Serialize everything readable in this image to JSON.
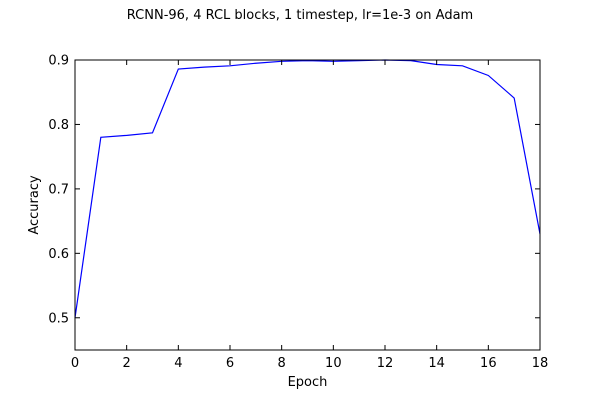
{
  "chart_data": {
    "type": "line",
    "title": "RCNN-96, 4 RCL blocks, 1 timestep, lr=1e-3 on Adam",
    "xlabel": "Epoch",
    "ylabel": "Accuracy",
    "xlim": [
      0,
      18
    ],
    "ylim": [
      0.45,
      0.9
    ],
    "xticks": [
      0,
      2,
      4,
      6,
      8,
      10,
      12,
      14,
      16,
      18
    ],
    "yticks": [
      0.5,
      0.6,
      0.7,
      0.8,
      0.9
    ],
    "xtick_labels": [
      "0",
      "2",
      "4",
      "6",
      "8",
      "10",
      "12",
      "14",
      "16",
      "18"
    ],
    "ytick_labels": [
      "0.5",
      "0.6",
      "0.7",
      "0.8",
      "0.9"
    ],
    "grid": false,
    "legend": "none",
    "series": [
      {
        "color": "#0000ff",
        "x": [
          0,
          1,
          2,
          3,
          4,
          5,
          6,
          7,
          8,
          9,
          10,
          11,
          12,
          13,
          14,
          15,
          16,
          17,
          18
        ],
        "values": [
          0.5,
          0.78,
          0.783,
          0.787,
          0.886,
          0.889,
          0.891,
          0.895,
          0.898,
          0.899,
          0.898,
          0.899,
          0.9,
          0.899,
          0.893,
          0.891,
          0.876,
          0.841,
          0.63
        ]
      }
    ]
  }
}
